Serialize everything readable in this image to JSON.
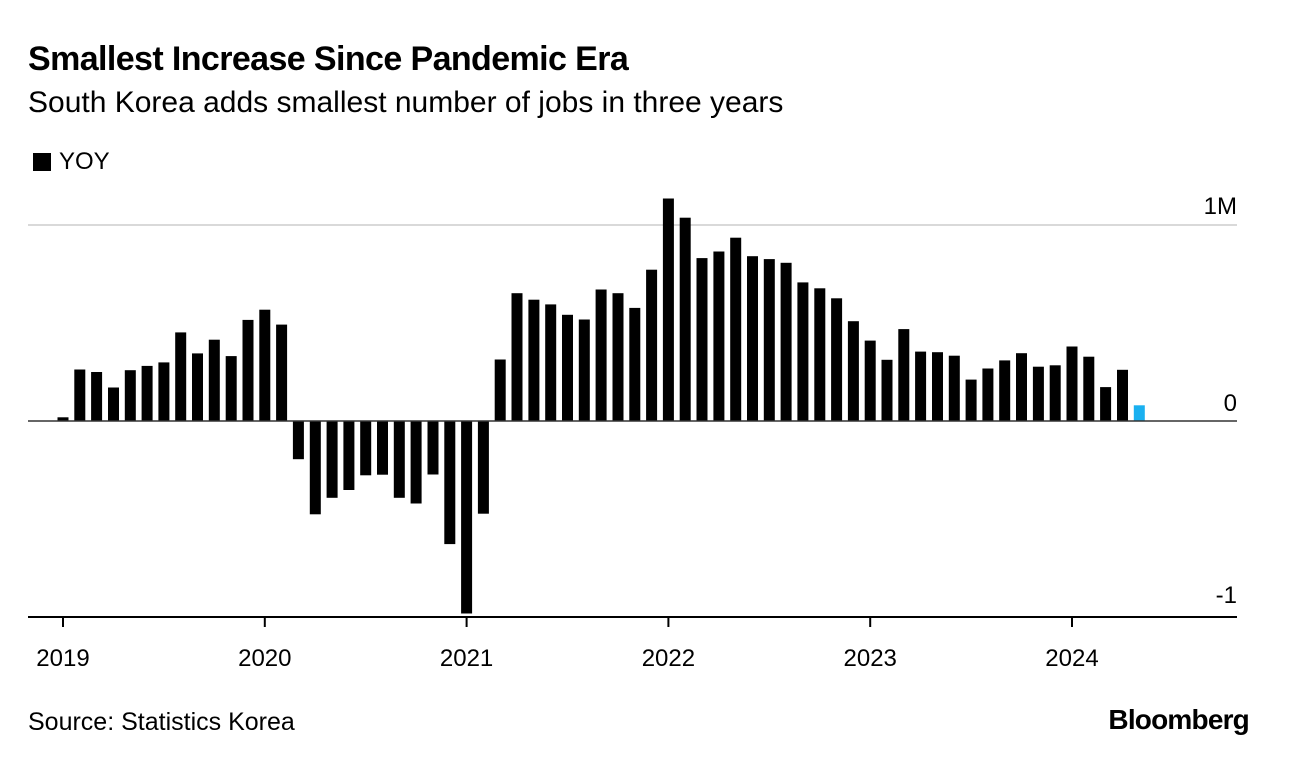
{
  "header": {
    "title": "Smallest Increase Since Pandemic Era",
    "subtitle": "South Korea adds smallest number of jobs in three years"
  },
  "legend": {
    "label": "YOY",
    "color": "#000000"
  },
  "footer": {
    "source": "Source: Statistics Korea",
    "brand": "Bloomberg"
  },
  "colors": {
    "bar": "#000000",
    "highlight": "#1ab0f0",
    "grid": "#d9d9d9",
    "axis": "#000000"
  },
  "chart_data": {
    "type": "bar",
    "title": "Smallest Increase Since Pandemic Era",
    "subtitle": "South Korea adds smallest number of jobs in three years",
    "series_name": "YOY",
    "unit": "M",
    "ylim": [
      -1,
      1
    ],
    "y_ticks": [
      {
        "value": 1,
        "label": "1M"
      },
      {
        "value": 0,
        "label": "0"
      },
      {
        "value": -1,
        "label": "-1"
      }
    ],
    "x_ticks": [
      "2019",
      "2020",
      "2021",
      "2022",
      "2023",
      "2024"
    ],
    "x_range_months": [
      0,
      70
    ],
    "start": "2019-01",
    "highlight_index": 64,
    "values": [
      0.019,
      0.263,
      0.25,
      0.171,
      0.259,
      0.281,
      0.299,
      0.452,
      0.345,
      0.415,
      0.331,
      0.516,
      0.568,
      0.492,
      -0.195,
      -0.476,
      -0.392,
      -0.352,
      -0.277,
      -0.274,
      -0.392,
      -0.421,
      -0.273,
      -0.628,
      -0.982,
      -0.473,
      0.314,
      0.652,
      0.619,
      0.595,
      0.542,
      0.518,
      0.671,
      0.652,
      0.577,
      0.772,
      1.135,
      1.037,
      0.831,
      0.865,
      0.935,
      0.841,
      0.826,
      0.807,
      0.707,
      0.677,
      0.626,
      0.509,
      0.41,
      0.312,
      0.469,
      0.354,
      0.351,
      0.333,
      0.211,
      0.268,
      0.309,
      0.346,
      0.277,
      0.284,
      0.38,
      0.328,
      0.173,
      0.261,
      0.08
    ]
  }
}
